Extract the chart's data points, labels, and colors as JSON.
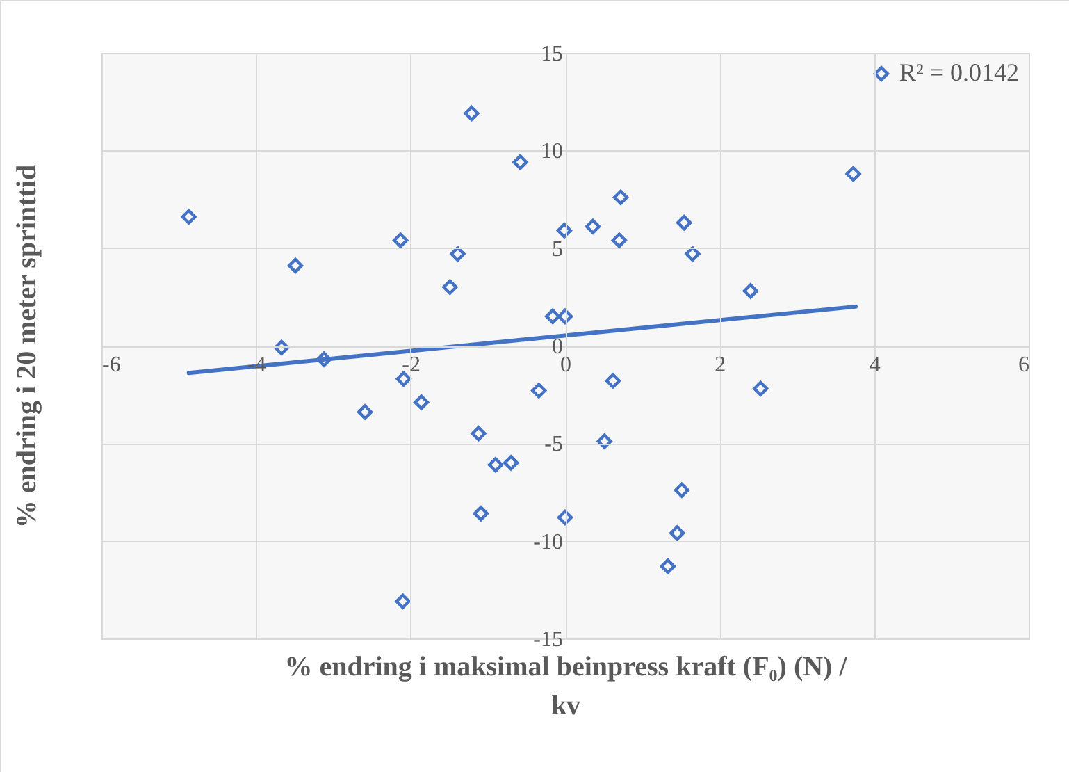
{
  "chart_data": {
    "type": "scatter",
    "xlabel": "% endring i maksimal beinpress kraft (F₀) (N) / kv",
    "ylabel": "% endring i 20 meter sprinttid",
    "xlim": [
      -6,
      6
    ],
    "xticks": [
      -6,
      -4,
      -2,
      0,
      2,
      4,
      6
    ],
    "ylim": [
      -15,
      15
    ],
    "yticks": [
      -15,
      -10,
      -5,
      0,
      5,
      10,
      15
    ],
    "grid": true,
    "legend": "top right",
    "series": [
      {
        "name": "R² = 0.0142",
        "color": "#4472c4",
        "marker": "diamond",
        "x": [
          -4.87,
          -1.21,
          -0.58,
          -2.13,
          -3.49,
          -1.39,
          -1.49,
          -0.01,
          -0.16,
          0.0,
          -3.67,
          -3.12,
          -2.09,
          -1.86,
          -2.59,
          -0.34,
          -1.12,
          -0.9,
          -0.7,
          -1.09,
          0.0,
          -2.1,
          3.73,
          0.72,
          0.36,
          0.7,
          1.54,
          1.65,
          2.4,
          0.62,
          2.53,
          0.51,
          1.51,
          1.45,
          1.33
        ],
        "values": [
          6.6,
          11.9,
          9.4,
          5.4,
          4.1,
          4.7,
          3.0,
          5.9,
          1.5,
          1.5,
          -0.1,
          -0.7,
          -1.7,
          -2.9,
          -3.4,
          -2.3,
          -4.5,
          -6.1,
          -6.0,
          -8.6,
          -8.8,
          -13.1,
          8.8,
          7.6,
          6.1,
          5.4,
          6.3,
          4.7,
          2.8,
          -1.8,
          -2.2,
          -4.9,
          -7.4,
          -9.6,
          -11.3
        ]
      },
      {
        "color": "#4472c4",
        "type": "line",
        "marker": "none",
        "x": [
          -4.87,
          3.76
        ],
        "values": [
          -1.4,
          2.0
        ]
      }
    ]
  }
}
